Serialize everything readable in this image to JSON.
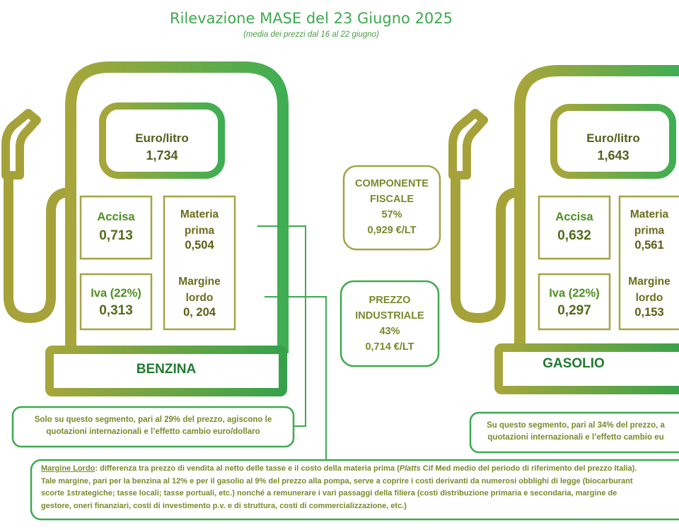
{
  "header": {
    "title": "Rilevazione MASE del 23 Giugno 2025",
    "subtitle": "(media dei prezzi dal 16 al 22 giugno)"
  },
  "benzina": {
    "name": "BENZINA",
    "price_label": "Euro/litro",
    "price_value": "1,734",
    "accisa_label": "Accisa",
    "accisa_value": "0,713",
    "iva_label": "Iva (22%)",
    "iva_value": "0,313",
    "materia_label_1": "Materia",
    "materia_label_2": "prima",
    "materia_value": "0,504",
    "margine_label_1": "Margine",
    "margine_label_2": "lordo",
    "margine_value": "0, 204",
    "note_line_1": "Solo su questo segmento, pari al 29% del prezzo, agiscono le",
    "note_line_2": "quotazioni internazionali e l’effetto cambio euro/dollaro"
  },
  "gasolio": {
    "name": "GASOLIO",
    "price_label": "Euro/litro",
    "price_value": "1,643",
    "accisa_label": "Accisa",
    "accisa_value": "0,632",
    "iva_label": "Iva (22%)",
    "iva_value": "0,297",
    "materia_label_1": "Materia",
    "materia_label_2": "prima",
    "materia_value": "0,561",
    "margine_label_1": "Margine",
    "margine_label_2": "lordo",
    "margine_value": "0,153",
    "note_line_1": "Su questo segmento, pari al 34% del prezzo, a",
    "note_line_2": "quotazioni internazionali e l’effetto cambio eu"
  },
  "componente_fiscale": {
    "line_1": "COMPONENTE",
    "line_2": "FISCALE",
    "percent": "57%",
    "value": "0,929 €/LT"
  },
  "prezzo_industriale": {
    "line_1": "PREZZO",
    "line_2": "INDUSTRIALE",
    "percent": "43%",
    "value": "0,714 €/LT"
  },
  "footnote": {
    "term": "Margine Lordo",
    "line_1_a": ": differenza tra prezzo di vendita al netto delle tasse e il costo della materia prima (",
    "line_1_italic": "Platts",
    "line_1_b": " Cif Med medio del periodo di riferimento del prezzo Italia).",
    "line_2": "Tale margine, pari per la benzina al 12% e per il gasolio al 9% del prezzo alla pompa, serve a coprire i costi derivanti da numerosi obblighi di legge (biocarburant",
    "line_3": "scorte 1strategiche; tasse locali; tasse portuali, etc.) nonché a remunerare i vari passaggi della filiera (costi distribuzione primaria e secondaria, margine de",
    "line_4": "gestore, oneri finanziari, costi di investimento p.v. e di struttura, costi di commercializzazione, etc.)"
  },
  "colors": {
    "olive": "#9aa23a",
    "green": "#3daa4f",
    "box_border": "#a3a544"
  }
}
